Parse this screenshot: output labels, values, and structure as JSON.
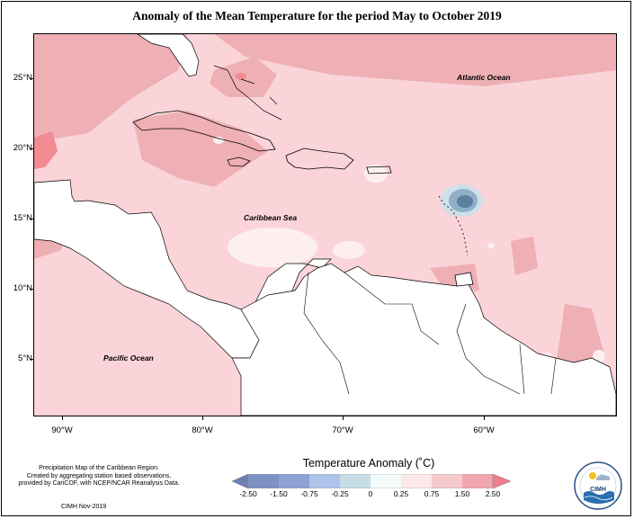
{
  "title": "Anomaly of the Mean Temperature for the period May to October 2019",
  "map": {
    "region": "Caribbean",
    "labels": {
      "atlantic": "Atlantic Ocean",
      "caribbean": "Caribbean Sea",
      "pacific": "Pacific Ocean"
    },
    "lat_ticks": [
      "25°N",
      "20°N",
      "15°N",
      "10°N",
      "5°N"
    ],
    "lon_ticks": [
      "90°W",
      "80°W",
      "70°W",
      "60°W"
    ],
    "colors": {
      "land": "#ffffff",
      "anom_0_25": "#fdeff0",
      "anom_25_75": "#fad4d9",
      "anom_75_150": "#eeb0b4",
      "anom_150_250": "#f28a92",
      "anom_neg_small": "#cfe0e8",
      "anom_neg_mid": "#8fb0c8",
      "anom_neg_strong": "#5d7f9e"
    }
  },
  "legend": {
    "title": "Temperature Anomaly (˚C)",
    "ticks": [
      "-2.50",
      "-1.50",
      "-0.75",
      "-0.25",
      "0",
      "0.25",
      "0.75",
      "1.50",
      "2.50"
    ],
    "colors": [
      "#6e7fb4",
      "#8ea2d4",
      "#aec3ea",
      "#c6dde7",
      "#f4fbfb",
      "#fde8ea",
      "#f6c9cd",
      "#f2a6ad",
      "#f07f8a"
    ]
  },
  "credits": {
    "line1": "Precipitation Map of the Caribbean Region.",
    "line2": "Created by aggregating station based observations,",
    "line3": "provided by CariCOF, with NCEP/NCAR Reanalysis Data.",
    "date": "CIMH Nov-2019"
  },
  "logo": {
    "text": "CIMH",
    "icon": "cimh-logo-icon"
  }
}
